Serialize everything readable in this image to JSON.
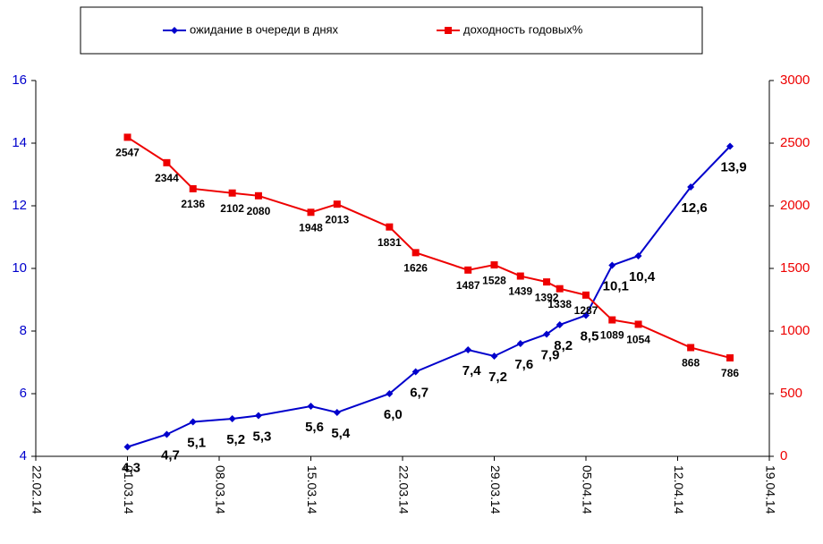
{
  "chart_data": {
    "type": "line",
    "x": [
      "01.03.14",
      "04.03.14",
      "06.03.14",
      "09.03.14",
      "11.03.14",
      "15.03.14",
      "17.03.14",
      "21.03.14",
      "23.03.14",
      "27.03.14",
      "29.03.14",
      "31.03.14",
      "02.04.14",
      "03.04.14",
      "05.04.14",
      "07.04.14",
      "09.04.14",
      "13.04.14",
      "16.04.14"
    ],
    "xlim": [
      "22.02.14",
      "19.04.14"
    ],
    "xticks": [
      "22.02.14",
      "01.03.14",
      "08.03.14",
      "15.03.14",
      "22.03.14",
      "29.03.14",
      "05.04.14",
      "12.04.14",
      "19.04.14"
    ],
    "ylim": [
      4,
      16
    ],
    "yticks": [
      4,
      6,
      8,
      10,
      12,
      14,
      16
    ],
    "y2lim": [
      0,
      3000
    ],
    "y2ticks": [
      0,
      500,
      1000,
      1500,
      2000,
      2500,
      3000
    ],
    "legend": "top",
    "series": [
      {
        "name": "ожидание в очереди в днях",
        "color": "#0000cc",
        "axis": "y",
        "values": [
          4.3,
          4.7,
          5.1,
          5.2,
          5.3,
          5.6,
          5.4,
          6.0,
          6.7,
          7.4,
          7.2,
          7.6,
          7.9,
          8.2,
          8.5,
          10.1,
          10.4,
          12.6,
          13.9
        ],
        "value_labels": [
          "4,3",
          "4,7",
          "5,1",
          "5,2",
          "5,3",
          "5,6",
          "5,4",
          "6,0",
          "6,7",
          "7,4",
          "7,2",
          "7,6",
          "7,9",
          "8,2",
          "8,5",
          "10,1",
          "10,4",
          "12,6",
          "13,9"
        ]
      },
      {
        "name": "доходность годовых%",
        "color": "#ee0000",
        "axis": "y2",
        "values": [
          2547,
          2344,
          2136,
          2102,
          2080,
          1948,
          2013,
          1831,
          1626,
          1487,
          1528,
          1439,
          1392,
          1338,
          1287,
          1089,
          1054,
          868,
          786
        ]
      }
    ]
  }
}
